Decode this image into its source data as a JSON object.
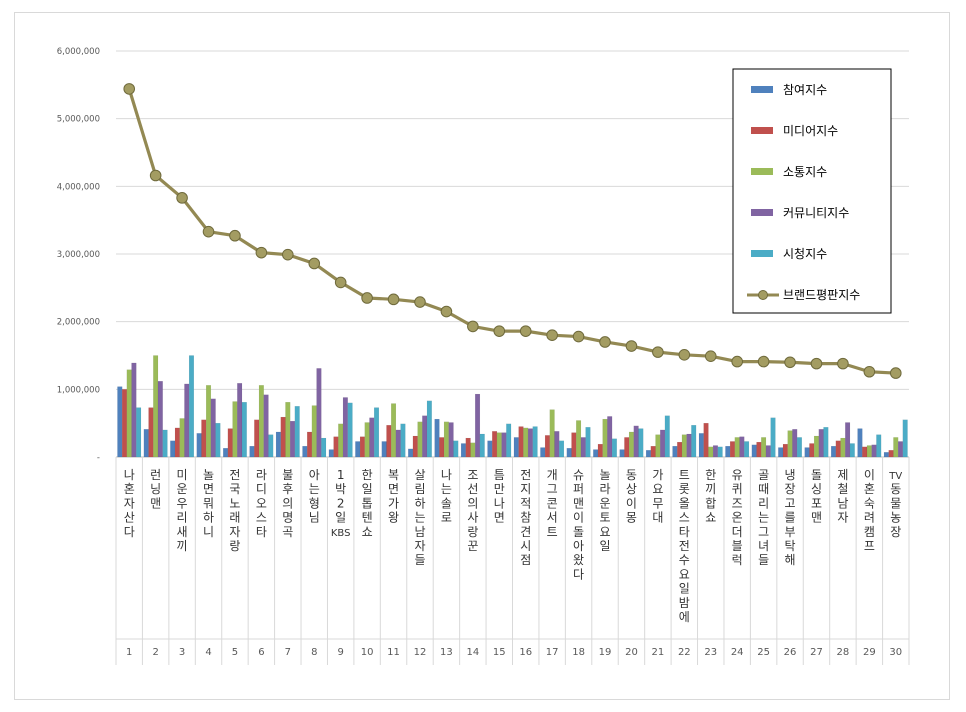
{
  "chart_data": {
    "type": "bar",
    "title": "",
    "xlabel": "",
    "ylabel": "",
    "ylim": [
      0,
      6000000
    ],
    "yticks": [
      "-",
      "1,000,000",
      "2,000,000",
      "3,000,000",
      "4,000,000",
      "5,000,000",
      "6,000,000"
    ],
    "ytick_values": [
      0,
      1000000,
      2000000,
      3000000,
      4000000,
      5000000,
      6000000
    ],
    "grid": true,
    "legend_position": "top-right",
    "ranks": [
      "1",
      "2",
      "3",
      "4",
      "5",
      "6",
      "7",
      "8",
      "9",
      "10",
      "11",
      "12",
      "13",
      "14",
      "15",
      "16",
      "17",
      "18",
      "19",
      "20",
      "21",
      "22",
      "23",
      "24",
      "25",
      "26",
      "27",
      "28",
      "29",
      "30"
    ],
    "categories": [
      "나혼자산다",
      "런닝맨",
      "미운우리새끼",
      "놀면뭐하니",
      "전국노래자랑",
      "라디오스타",
      "불후의명곡",
      "아는형님",
      "1박 2일 KBS",
      "한일톱텐쇼",
      "복면가왕",
      "살림하는남자들",
      "나는솔로",
      "조선의사랑꾼",
      "틈만나면",
      "전지적참견시점",
      "개그콘서트",
      "슈퍼맨이돌아왔다",
      "놀라운토요일",
      "동상이몽",
      "가요무대",
      "트롯올스타전수요일밤에",
      "한끼합쇼",
      "유퀴즈온더블럭",
      "골때리는그녀들",
      "냉장고를부탁해",
      "돌싱포맨",
      "제철남자",
      "이혼숙려캠프",
      "TV동물농장"
    ],
    "series": [
      {
        "name": "참여지수",
        "color": "#4f81bd",
        "kind": "bar",
        "values": [
          1040000,
          410000,
          240000,
          350000,
          130000,
          160000,
          370000,
          160000,
          110000,
          230000,
          230000,
          120000,
          560000,
          200000,
          240000,
          290000,
          140000,
          130000,
          110000,
          110000,
          100000,
          160000,
          350000,
          160000,
          180000,
          140000,
          140000,
          160000,
          420000,
          70000
        ]
      },
      {
        "name": "미디어지수",
        "color": "#c0504d",
        "kind": "bar",
        "values": [
          1000000,
          730000,
          430000,
          550000,
          420000,
          550000,
          590000,
          370000,
          300000,
          300000,
          470000,
          310000,
          290000,
          280000,
          380000,
          450000,
          320000,
          360000,
          190000,
          290000,
          160000,
          220000,
          500000,
          230000,
          220000,
          190000,
          200000,
          240000,
          150000,
          100000
        ]
      },
      {
        "name": "소통지수",
        "color": "#9bbb59",
        "kind": "bar",
        "values": [
          1290000,
          1500000,
          570000,
          1060000,
          820000,
          1060000,
          810000,
          760000,
          490000,
          510000,
          790000,
          520000,
          520000,
          210000,
          360000,
          430000,
          700000,
          540000,
          560000,
          370000,
          330000,
          330000,
          150000,
          290000,
          290000,
          390000,
          310000,
          280000,
          170000,
          290000
        ]
      },
      {
        "name": "커뮤니티지수",
        "color": "#8064a2",
        "kind": "bar",
        "values": [
          1390000,
          1120000,
          1080000,
          860000,
          1090000,
          920000,
          530000,
          1310000,
          880000,
          580000,
          400000,
          610000,
          510000,
          930000,
          360000,
          420000,
          380000,
          290000,
          600000,
          460000,
          400000,
          340000,
          170000,
          300000,
          170000,
          410000,
          410000,
          510000,
          180000,
          230000
        ]
      },
      {
        "name": "시청지수",
        "color": "#4bacc6",
        "kind": "bar",
        "values": [
          730000,
          400000,
          1500000,
          500000,
          810000,
          330000,
          750000,
          280000,
          800000,
          730000,
          490000,
          830000,
          240000,
          340000,
          490000,
          450000,
          240000,
          440000,
          270000,
          420000,
          610000,
          470000,
          150000,
          230000,
          580000,
          290000,
          440000,
          200000,
          330000,
          550000
        ]
      },
      {
        "name": "브랜드평판지수",
        "color": "#938953",
        "kind": "line",
        "values": [
          5440000,
          4160000,
          3830000,
          3330000,
          3270000,
          3020000,
          2990000,
          2860000,
          2580000,
          2350000,
          2330000,
          2290000,
          2150000,
          1930000,
          1860000,
          1860000,
          1800000,
          1780000,
          1700000,
          1640000,
          1550000,
          1510000,
          1490000,
          1410000,
          1410000,
          1400000,
          1380000,
          1380000,
          1260000,
          1240000
        ]
      }
    ]
  }
}
